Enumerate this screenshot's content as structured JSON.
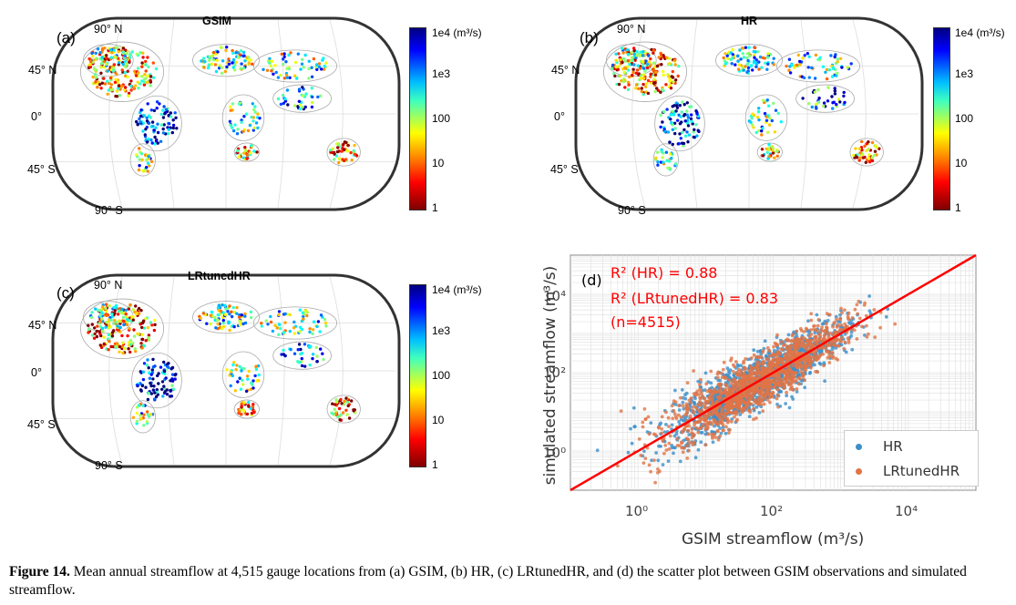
{
  "panels": [
    {
      "label": "(a)",
      "title": "GSIM",
      "seed": 11
    },
    {
      "label": "(b)",
      "title": "HR",
      "seed": 23
    },
    {
      "label": "(c)",
      "title": "LRtunedHR",
      "seed": 37
    }
  ],
  "lat_labels": [
    "90° N",
    "45° N",
    "0°",
    "45° S",
    "90° S"
  ],
  "colorbar": {
    "ticks": [
      "1e4 (m³/s)",
      "1e3",
      "100",
      "10",
      "1"
    ],
    "colormap": "jet (reversed, blue=high, red=low)"
  },
  "scatter": {
    "label": "(d)",
    "stats": [
      "R² (HR) = 0.88",
      "R² (LRtunedHR) = 0.83",
      "(n=4515)"
    ],
    "xlabel": "GSIM streamflow (m³/s)",
    "ylabel": "simulated streamflow (m³/s)",
    "xticks": [
      "10⁰",
      "10²",
      "10⁴"
    ],
    "yticks": [
      "10⁰",
      "10²",
      "10⁴"
    ],
    "legend": [
      {
        "name": "HR",
        "color": "#3b8fc9"
      },
      {
        "name": "LRtunedHR",
        "color": "#e07446"
      }
    ],
    "line_color": "#ff0000",
    "xlim_log10": [
      -1.0,
      5.0
    ],
    "ylim_log10": [
      -1.0,
      5.0
    ]
  },
  "caption": {
    "label": "Figure 14.",
    "text": " Mean annual streamflow at 4,515 gauge locations from (a) GSIM, (b) HR, (c) LRtunedHR, and (d) the scatter plot between GSIM observations and simulated streamflow."
  }
}
